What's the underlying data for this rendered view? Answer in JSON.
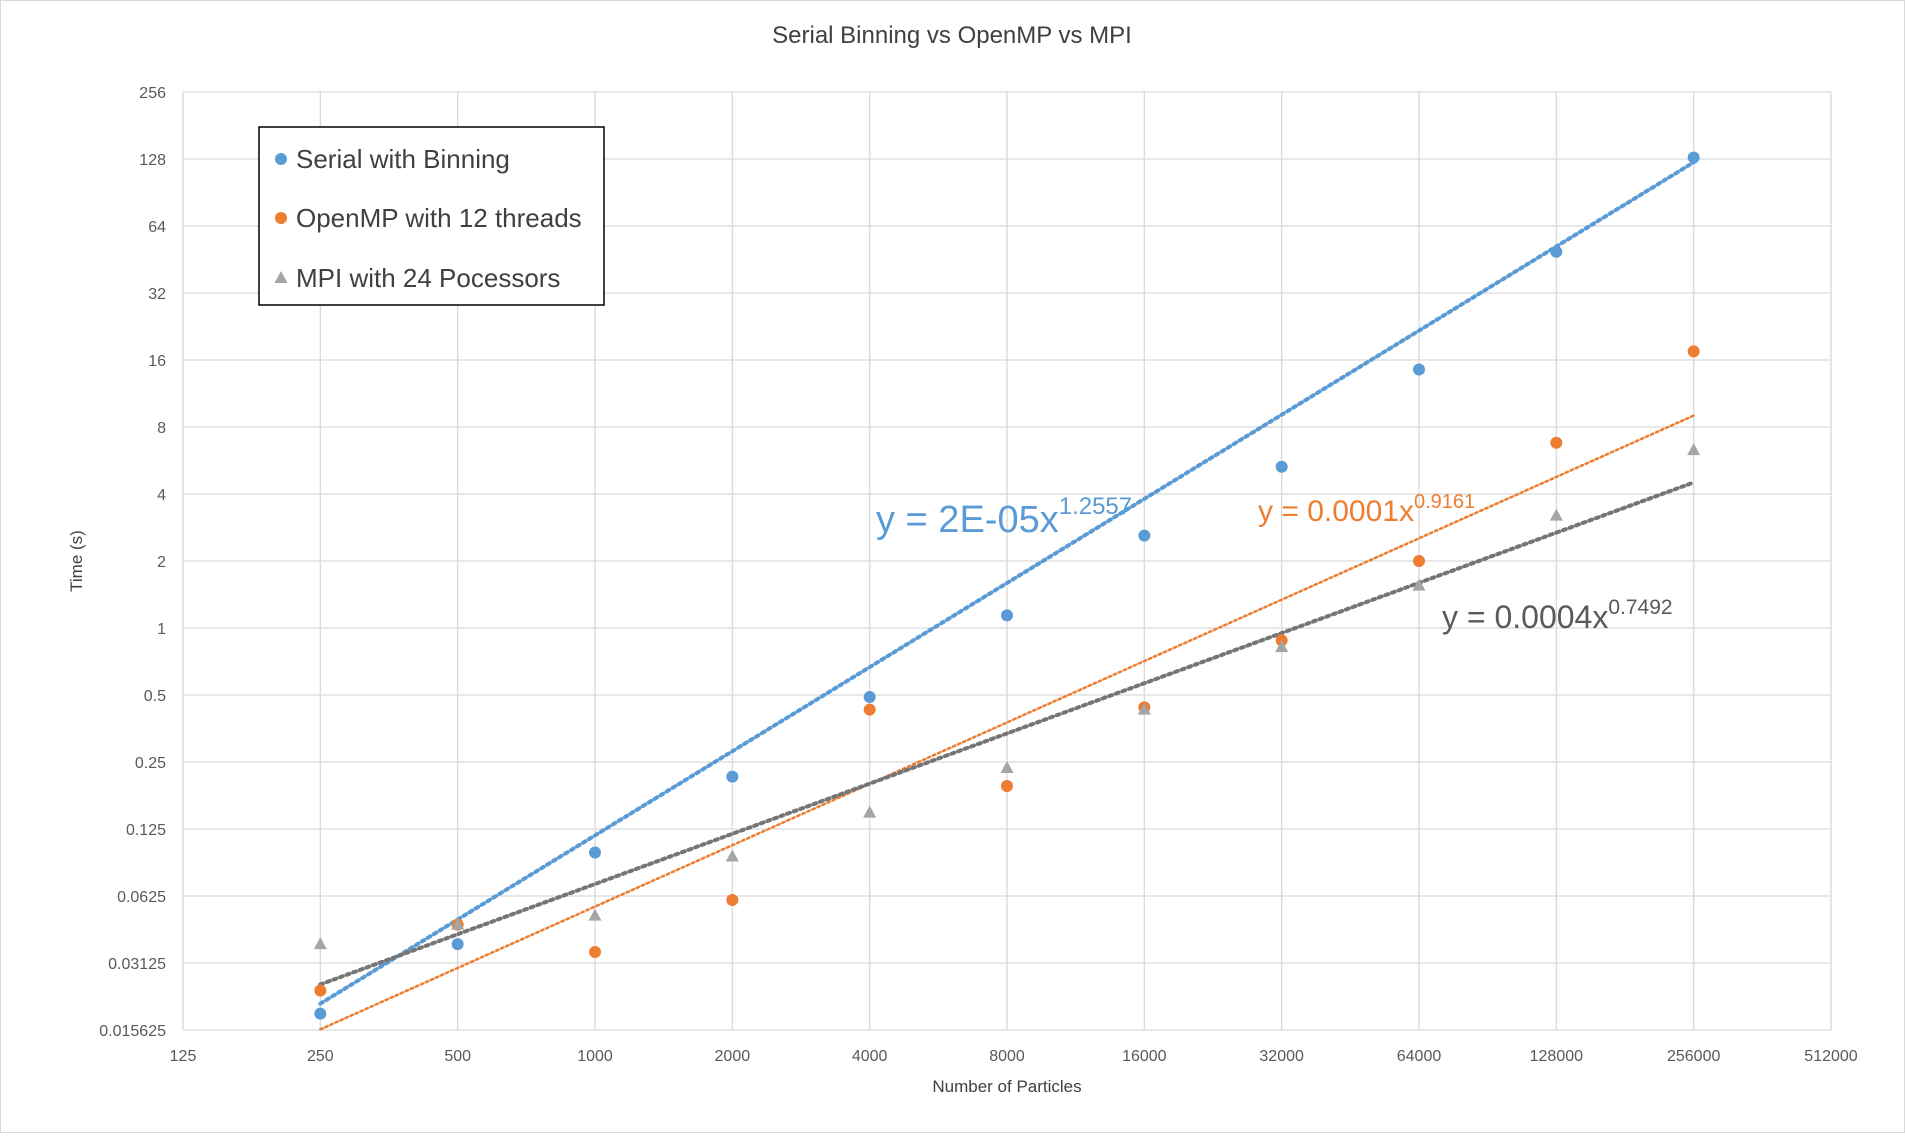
{
  "chart_data": {
    "type": "scatter",
    "title": "Serial Binning vs OpenMP vs MPI",
    "xlabel": "Number of Particles",
    "ylabel": "Time (s)",
    "x_scale": "log2",
    "y_scale": "log2",
    "xlim": [
      125,
      512000
    ],
    "ylim": [
      0.015625,
      256
    ],
    "x_ticks": [
      "125",
      "250",
      "500",
      "1000",
      "2000",
      "4000",
      "8000",
      "16000",
      "32000",
      "64000",
      "128000",
      "256000",
      "512000"
    ],
    "y_ticks": [
      "0.015625",
      "0.03125",
      "0.0625",
      "0.125",
      "0.25",
      "0.5",
      "1",
      "2",
      "4",
      "8",
      "16",
      "32",
      "64",
      "128",
      "256"
    ],
    "grid": true,
    "legend_position": "top-left",
    "series": [
      {
        "name": "Serial with Binning",
        "color": "#5b9bd5",
        "marker": "circle",
        "x": [
          250,
          500,
          1000,
          2000,
          4000,
          8000,
          16000,
          32000,
          64000,
          128000,
          256000
        ],
        "y": [
          0.0185,
          0.038,
          0.098,
          0.215,
          0.49,
          1.14,
          2.6,
          5.3,
          14.5,
          49,
          130
        ],
        "trendline": {
          "type": "power",
          "coef": 2e-05,
          "exp": 1.2557,
          "label_base": "y = 2E-05x",
          "label_exp": "1.2557"
        }
      },
      {
        "name": "OpenMP with 12 threads",
        "color": "#ed7d31",
        "marker": "circle",
        "x": [
          250,
          500,
          1000,
          2000,
          4000,
          8000,
          16000,
          32000,
          64000,
          128000,
          256000
        ],
        "y": [
          0.0235,
          0.0465,
          0.035,
          0.06,
          0.43,
          0.195,
          0.44,
          0.88,
          2.0,
          6.8,
          17.5
        ],
        "trendline": {
          "type": "power",
          "coef": 0.0001,
          "exp": 0.9161,
          "label_base": "y = 0.0001x",
          "label_exp": "0.9161"
        }
      },
      {
        "name": "MPI with 24 Pocessors",
        "color": "#a5a5a5",
        "marker": "triangle",
        "x": [
          250,
          500,
          1000,
          2000,
          4000,
          8000,
          16000,
          32000,
          64000,
          128000,
          256000
        ],
        "y": [
          0.038,
          0.0465,
          0.051,
          0.094,
          0.148,
          0.235,
          0.43,
          0.82,
          1.55,
          3.2,
          6.3
        ],
        "trendline": {
          "type": "power",
          "coef": 0.0004,
          "exp": 0.7492,
          "label_base": "y = 0.0004x",
          "label_exp": "0.7492",
          "line_color": "#757575",
          "label_color": "#595959"
        }
      }
    ]
  }
}
